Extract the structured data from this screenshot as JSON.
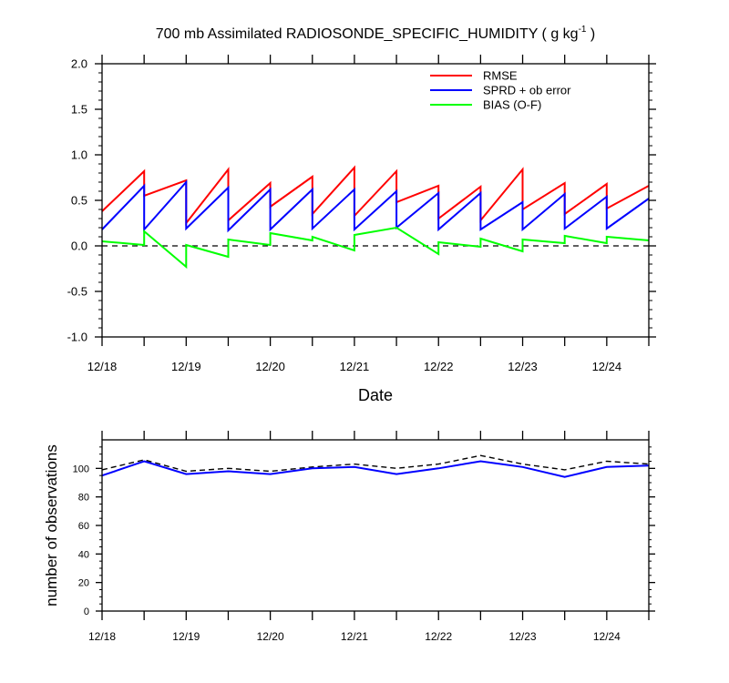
{
  "title": {
    "main": "700 mb Assimilated RADIOSONDE_SPECIFIC_HUMIDITY ( g kg",
    "sup": "-1",
    "tail": " )"
  },
  "chart_data": [
    {
      "type": "line",
      "xlabel": "Date",
      "ylabel": "",
      "ylim": [
        -1.0,
        2.0
      ],
      "xlim": [
        0,
        6.5
      ],
      "x_tick_labels": [
        "12/18",
        "12/19",
        "12/20",
        "12/21",
        "12/22",
        "12/23",
        "12/24"
      ],
      "y_tick_labels": [
        "-1.0",
        "-0.5",
        "0.0",
        "0.5",
        "1.0",
        "1.5",
        "2.0"
      ],
      "y_ticks": [
        -1.0,
        -0.5,
        0.0,
        0.5,
        1.0,
        1.5,
        2.0
      ],
      "legend_position": "top-right",
      "reference_line": {
        "y": 0,
        "style": "dashed",
        "color": "#000000"
      },
      "series": [
        {
          "name": "RMSE",
          "color": "#ff0000",
          "segments": [
            [
              [
                0,
                0.38
              ],
              [
                0.5,
                0.82
              ]
            ],
            [
              [
                0.5,
                0.55
              ],
              [
                1.0,
                0.72
              ]
            ],
            [
              [
                1.0,
                0.25
              ],
              [
                1.5,
                0.84
              ]
            ],
            [
              [
                1.5,
                0.28
              ],
              [
                2.0,
                0.69
              ]
            ],
            [
              [
                2.0,
                0.43
              ],
              [
                2.5,
                0.76
              ]
            ],
            [
              [
                2.5,
                0.35
              ],
              [
                3.0,
                0.86
              ]
            ],
            [
              [
                3.0,
                0.33
              ],
              [
                3.5,
                0.82
              ]
            ],
            [
              [
                3.5,
                0.48
              ],
              [
                4.0,
                0.66
              ]
            ],
            [
              [
                4.0,
                0.3
              ],
              [
                4.5,
                0.65
              ]
            ],
            [
              [
                4.5,
                0.28
              ],
              [
                5.0,
                0.84
              ]
            ],
            [
              [
                5.0,
                0.4
              ],
              [
                5.5,
                0.69
              ]
            ],
            [
              [
                5.5,
                0.35
              ],
              [
                6.0,
                0.68
              ]
            ],
            [
              [
                6.0,
                0.41
              ],
              [
                6.5,
                0.66
              ]
            ]
          ]
        },
        {
          "name": "SPRD + ob error",
          "color": "#0000ff",
          "segments": [
            [
              [
                0,
                0.18
              ],
              [
                0.5,
                0.66
              ]
            ],
            [
              [
                0.5,
                0.18
              ],
              [
                1.0,
                0.7
              ]
            ],
            [
              [
                1.0,
                0.19
              ],
              [
                1.5,
                0.64
              ]
            ],
            [
              [
                1.5,
                0.17
              ],
              [
                2.0,
                0.62
              ]
            ],
            [
              [
                2.0,
                0.18
              ],
              [
                2.5,
                0.62
              ]
            ],
            [
              [
                2.5,
                0.19
              ],
              [
                3.0,
                0.62
              ]
            ],
            [
              [
                3.0,
                0.18
              ],
              [
                3.5,
                0.6
              ]
            ],
            [
              [
                3.5,
                0.2
              ],
              [
                4.0,
                0.58
              ]
            ],
            [
              [
                4.0,
                0.18
              ],
              [
                4.5,
                0.58
              ]
            ],
            [
              [
                4.5,
                0.18
              ],
              [
                5.0,
                0.48
              ]
            ],
            [
              [
                5.0,
                0.18
              ],
              [
                5.5,
                0.57
              ]
            ],
            [
              [
                5.5,
                0.19
              ],
              [
                6.0,
                0.54
              ]
            ],
            [
              [
                6.0,
                0.19
              ],
              [
                6.5,
                0.52
              ]
            ]
          ]
        },
        {
          "name": "BIAS (O-F)",
          "color": "#00ff00",
          "segments": [
            [
              [
                0,
                0.05
              ],
              [
                0.5,
                0.01
              ]
            ],
            [
              [
                0.5,
                0.16
              ],
              [
                1.0,
                -0.23
              ]
            ],
            [
              [
                1.0,
                0.01
              ],
              [
                1.5,
                -0.12
              ]
            ],
            [
              [
                1.5,
                0.07
              ],
              [
                2.0,
                0.01
              ]
            ],
            [
              [
                2.0,
                0.14
              ],
              [
                2.5,
                0.06
              ]
            ],
            [
              [
                2.5,
                0.1
              ],
              [
                3.0,
                -0.05
              ]
            ],
            [
              [
                3.0,
                0.12
              ],
              [
                3.5,
                0.2
              ]
            ],
            [
              [
                3.5,
                0.2
              ],
              [
                4.0,
                -0.09
              ]
            ],
            [
              [
                4.0,
                0.04
              ],
              [
                4.5,
                -0.01
              ]
            ],
            [
              [
                4.5,
                0.08
              ],
              [
                5.0,
                -0.06
              ]
            ],
            [
              [
                5.0,
                0.07
              ],
              [
                5.5,
                0.03
              ]
            ],
            [
              [
                5.5,
                0.11
              ],
              [
                6.0,
                0.03
              ]
            ],
            [
              [
                6.0,
                0.1
              ],
              [
                6.5,
                0.06
              ]
            ]
          ]
        }
      ]
    },
    {
      "type": "line",
      "xlabel": "",
      "ylabel": "number of observations",
      "ylim": [
        0,
        120
      ],
      "xlim": [
        0,
        6.5
      ],
      "x_tick_labels": [
        "12/18",
        "12/19",
        "12/20",
        "12/21",
        "12/22",
        "12/23",
        "12/24"
      ],
      "y_tick_labels": [
        "0",
        "20",
        "40",
        "60",
        "80",
        "100"
      ],
      "y_ticks": [
        0,
        20,
        40,
        60,
        80,
        100
      ],
      "x": [
        0,
        0.5,
        1.0,
        1.5,
        2.0,
        2.5,
        3.0,
        3.5,
        4.0,
        4.5,
        5.0,
        5.5,
        6.0,
        6.5
      ],
      "series": [
        {
          "style": "dashed",
          "color": "#000000",
          "values": [
            99,
            106,
            98,
            100,
            98,
            101,
            103,
            100,
            103,
            109,
            103,
            99,
            105,
            103
          ]
        },
        {
          "style": "solid",
          "color": "#0000ff",
          "values": [
            95,
            105,
            96,
            98,
            96,
            100,
            101,
            96,
            100,
            105,
            101,
            94,
            101,
            102
          ]
        }
      ]
    }
  ]
}
